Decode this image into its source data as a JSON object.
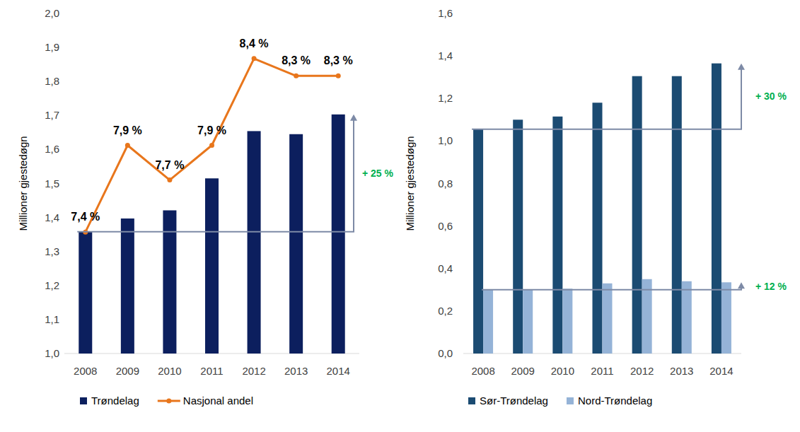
{
  "chart_data": [
    {
      "type": "bar",
      "ylabel": "Millioner gjestedøgn",
      "categories": [
        "2008",
        "2009",
        "2010",
        "2011",
        "2012",
        "2013",
        "2014"
      ],
      "series": [
        {
          "name": "Trøndelag",
          "type": "bar",
          "color": "#0c1f5e",
          "values": [
            1.358,
            1.397,
            1.421,
            1.515,
            1.654,
            1.645,
            1.703
          ]
        },
        {
          "name": "Nasjonal andel",
          "type": "line",
          "color": "#e8761c",
          "marker": "circle",
          "axis": "y2",
          "data_labels": true,
          "values": [
            7.4,
            7.9,
            7.7,
            7.9,
            8.4,
            8.3,
            8.3
          ],
          "value_labels": [
            "7,4 %",
            "7,9 %",
            "7,7 %",
            "7,9 %",
            "8,4 %",
            "8,3 %",
            "8,3 %"
          ]
        }
      ],
      "ylim": [
        1.0,
        2.0
      ],
      "yticks": [
        {
          "value": 1.0,
          "label": "1,0"
        },
        {
          "value": 1.1,
          "label": "1,1"
        },
        {
          "value": 1.2,
          "label": "1,2"
        },
        {
          "value": 1.3,
          "label": "1,3"
        },
        {
          "value": 1.4,
          "label": "1,4"
        },
        {
          "value": 1.5,
          "label": "1,5"
        },
        {
          "value": 1.6,
          "label": "1,6"
        },
        {
          "value": 1.7,
          "label": "1,7"
        },
        {
          "value": 1.8,
          "label": "1,8"
        },
        {
          "value": 1.9,
          "label": "1,9"
        },
        {
          "value": 2.0,
          "label": "2,0"
        }
      ],
      "y2lim": [
        6.7,
        8.66
      ],
      "grid": false,
      "legend": "bottom",
      "annotations": [
        {
          "text": "+ 25 %"
        }
      ]
    },
    {
      "type": "bar",
      "ylabel": "Millioner gjestedøgn",
      "categories": [
        "2008",
        "2009",
        "2010",
        "2011",
        "2012",
        "2013",
        "2014"
      ],
      "series": [
        {
          "name": "Sør-Trøndelag",
          "type": "bar",
          "color": "#1b4b72",
          "values": [
            1.055,
            1.1,
            1.115,
            1.18,
            1.305,
            1.305,
            1.365
          ]
        },
        {
          "name": "Nord-Trøndelag",
          "type": "bar",
          "color": "#95b3d7",
          "values": [
            0.3,
            0.3,
            0.305,
            0.33,
            0.35,
            0.34,
            0.335
          ]
        }
      ],
      "ylim": [
        0.0,
        1.6
      ],
      "yticks": [
        {
          "value": 0.0,
          "label": "0,0"
        },
        {
          "value": 0.2,
          "label": "0,2"
        },
        {
          "value": 0.4,
          "label": "0,4"
        },
        {
          "value": 0.6,
          "label": "0,6"
        },
        {
          "value": 0.8,
          "label": "0,8"
        },
        {
          "value": 1.0,
          "label": "1,0"
        },
        {
          "value": 1.2,
          "label": "1,2"
        },
        {
          "value": 1.4,
          "label": "1,4"
        },
        {
          "value": 1.6,
          "label": "1,6"
        }
      ],
      "grid": false,
      "legend": "bottom",
      "annotations": [
        {
          "text": "+ 30 %"
        },
        {
          "text": "+ 12 %"
        }
      ]
    }
  ]
}
